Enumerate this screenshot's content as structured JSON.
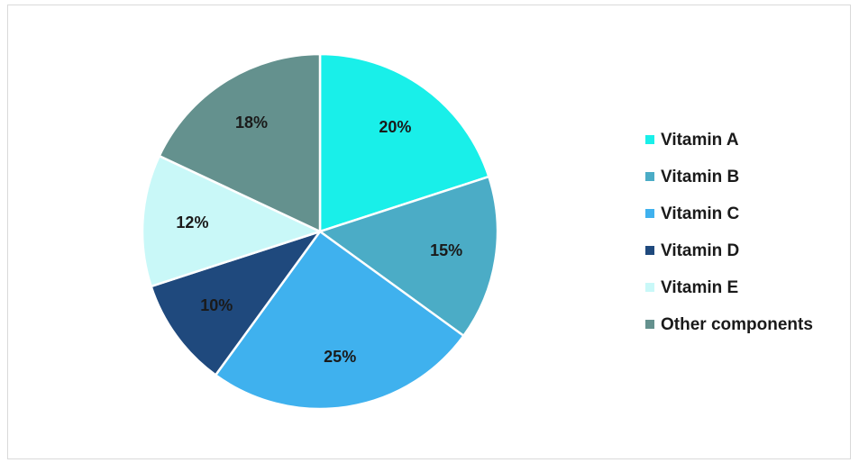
{
  "chart_data": {
    "type": "pie",
    "categories": [
      "Vitamin A",
      "Vitamin B",
      "Vitamin C",
      "Vitamin D",
      "Vitamin E",
      "Other components"
    ],
    "values": [
      20,
      15,
      25,
      10,
      12,
      18
    ],
    "value_labels": [
      "20%",
      "15%",
      "25%",
      "10%",
      "12%",
      "18%"
    ],
    "colors": [
      "#19efe9",
      "#4bacc6",
      "#3fb1ee",
      "#1f497d",
      "#c9f8f8",
      "#64918e"
    ],
    "legend": "right"
  }
}
